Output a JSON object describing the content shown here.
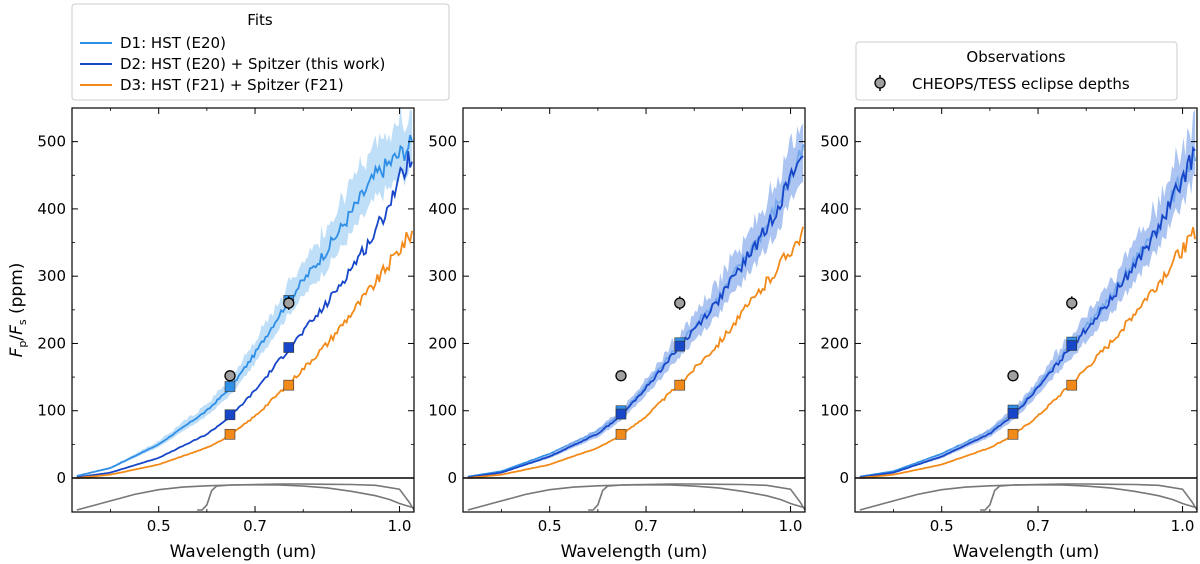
{
  "colors": {
    "d1": "#2f8fe6",
    "d1_band": "#a9d3f6",
    "d2": "#1747c8",
    "d2_band": "#8fb0ee",
    "d3": "#f28a1a",
    "d3_band": "#f8c48c",
    "marker": "#a0a0a0",
    "response": "#777777"
  },
  "legend_fits": {
    "title": "Fits",
    "entries": [
      {
        "label": "D1: HST (E20)",
        "color_key": "d1"
      },
      {
        "label": "D2: HST (E20) + Spitzer (this work)",
        "color_key": "d2"
      },
      {
        "label": "D3: HST (F21) + Spitzer (F21)",
        "color_key": "d3"
      }
    ]
  },
  "legend_obs": {
    "title": "Observations",
    "entries": [
      {
        "label": "CHEOPS/TESS eclipse depths"
      }
    ]
  },
  "ylabel": "F_p/F_s (ppm)",
  "ylabel_parts": {
    "f1": "F",
    "s1": "p",
    "slash": "/",
    "f2": "F",
    "s2": "s",
    "unit": " (ppm)"
  },
  "chart_data": [
    {
      "type": "line",
      "xlabel": "Wavelength (um)",
      "ylabel": "F_p/F_s (ppm)",
      "xlim": [
        0.32,
        1.03
      ],
      "ylim": [
        -50,
        550
      ],
      "xticks": [
        0.5,
        0.7,
        1.0
      ],
      "xtick_labels": [
        "0.5",
        "0.7",
        "1.0"
      ],
      "yticks": [
        0,
        100,
        200,
        300,
        400,
        500
      ],
      "ytick_labels": [
        "0",
        "100",
        "200",
        "300",
        "400",
        "500"
      ],
      "zero_line": 0,
      "series": [
        {
          "name": "D1: HST (E20)",
          "color_key": "d1",
          "band": true,
          "x": [
            0.33,
            0.4,
            0.5,
            0.6,
            0.65,
            0.7,
            0.77,
            0.85,
            0.95,
            1.03
          ],
          "y": [
            3,
            15,
            50,
            100,
            135,
            185,
            265,
            340,
            450,
            500
          ]
        },
        {
          "name": "D2: HST (E20) + Spitzer (this work)",
          "color_key": "d2",
          "band": false,
          "x": [
            0.33,
            0.4,
            0.5,
            0.6,
            0.65,
            0.7,
            0.77,
            0.85,
            0.95,
            1.03
          ],
          "y": [
            1,
            8,
            30,
            65,
            92,
            130,
            192,
            260,
            365,
            490
          ]
        },
        {
          "name": "D3: HST (F21) + Spitzer (F21)",
          "color_key": "d3",
          "band": false,
          "x": [
            0.33,
            0.4,
            0.5,
            0.6,
            0.65,
            0.7,
            0.77,
            0.85,
            0.95,
            1.03
          ],
          "y": [
            0,
            5,
            20,
            45,
            64,
            92,
            140,
            200,
            290,
            370
          ]
        }
      ],
      "points": [
        {
          "x": 0.648,
          "y": 136,
          "color_key": "d1"
        },
        {
          "x": 0.648,
          "y": 94,
          "color_key": "d2"
        },
        {
          "x": 0.648,
          "y": 65,
          "color_key": "d3"
        },
        {
          "x": 0.77,
          "y": 264,
          "color_key": "d1"
        },
        {
          "x": 0.77,
          "y": 194,
          "color_key": "d2"
        },
        {
          "x": 0.77,
          "y": 138,
          "color_key": "d3"
        }
      ],
      "observations": [
        {
          "x": 0.648,
          "y": 152,
          "err": 8
        },
        {
          "x": 0.77,
          "y": 260,
          "err": 10
        }
      ]
    },
    {
      "type": "line",
      "xlabel": "Wavelength (um)",
      "ylabel": "",
      "xlim": [
        0.32,
        1.03
      ],
      "ylim": [
        -50,
        550
      ],
      "xticks": [
        0.5,
        0.7,
        1.0
      ],
      "xtick_labels": [
        "0.5",
        "0.7",
        "1.0"
      ],
      "yticks": [
        0,
        100,
        200,
        300,
        400,
        500
      ],
      "ytick_labels": [
        "0",
        "100",
        "200",
        "300",
        "400",
        "500"
      ],
      "zero_line": 0,
      "series": [
        {
          "name": "D1: HST (E20)",
          "color_key": "d1",
          "band": false,
          "x": [
            0.33,
            0.4,
            0.5,
            0.6,
            0.65,
            0.7,
            0.77,
            0.85,
            0.95,
            1.03
          ],
          "y": [
            2,
            10,
            36,
            70,
            97,
            138,
            200,
            268,
            375,
            490
          ]
        },
        {
          "name": "D2: HST (E20) + Spitzer (this work)",
          "color_key": "d2",
          "band": true,
          "x": [
            0.33,
            0.4,
            0.5,
            0.6,
            0.65,
            0.7,
            0.77,
            0.85,
            0.95,
            1.03
          ],
          "y": [
            1,
            8,
            32,
            66,
            94,
            134,
            196,
            264,
            370,
            490
          ]
        },
        {
          "name": "D3: HST (F21) + Spitzer (F21)",
          "color_key": "d3",
          "band": false,
          "x": [
            0.33,
            0.4,
            0.5,
            0.6,
            0.65,
            0.7,
            0.77,
            0.85,
            0.95,
            1.03
          ],
          "y": [
            0,
            5,
            20,
            45,
            64,
            92,
            140,
            200,
            290,
            370
          ]
        }
      ],
      "points": [
        {
          "x": 0.648,
          "y": 100,
          "color_key": "d1"
        },
        {
          "x": 0.648,
          "y": 95,
          "color_key": "d2"
        },
        {
          "x": 0.648,
          "y": 65,
          "color_key": "d3"
        },
        {
          "x": 0.77,
          "y": 201,
          "color_key": "d1"
        },
        {
          "x": 0.77,
          "y": 196,
          "color_key": "d2"
        },
        {
          "x": 0.77,
          "y": 138,
          "color_key": "d3"
        }
      ],
      "observations": [
        {
          "x": 0.648,
          "y": 152,
          "err": 8
        },
        {
          "x": 0.77,
          "y": 260,
          "err": 10
        }
      ]
    },
    {
      "type": "line",
      "xlabel": "Wavelength (um)",
      "ylabel": "",
      "xlim": [
        0.32,
        1.03
      ],
      "ylim": [
        -50,
        550
      ],
      "xticks": [
        0.5,
        0.7,
        1.0
      ],
      "xtick_labels": [
        "0.5",
        "0.7",
        "1.0"
      ],
      "yticks": [
        0,
        100,
        200,
        300,
        400,
        500
      ],
      "ytick_labels": [
        "0",
        "100",
        "200",
        "300",
        "400",
        "500"
      ],
      "zero_line": 0,
      "series": [
        {
          "name": "D1: HST (E20)",
          "color_key": "d1",
          "band": false,
          "x": [
            0.33,
            0.4,
            0.5,
            0.6,
            0.65,
            0.7,
            0.77,
            0.85,
            0.95,
            1.03
          ],
          "y": [
            2,
            10,
            36,
            70,
            98,
            138,
            200,
            268,
            375,
            490
          ]
        },
        {
          "name": "D2: HST (E20) + Spitzer (this work)",
          "color_key": "d2",
          "band": true,
          "x": [
            0.33,
            0.4,
            0.5,
            0.6,
            0.65,
            0.7,
            0.77,
            0.85,
            0.95,
            1.03
          ],
          "y": [
            1,
            8,
            32,
            66,
            94,
            134,
            196,
            264,
            370,
            490
          ]
        },
        {
          "name": "D3: HST (F21) + Spitzer (F21)",
          "color_key": "d3",
          "band": false,
          "x": [
            0.33,
            0.4,
            0.5,
            0.6,
            0.65,
            0.7,
            0.77,
            0.85,
            0.95,
            1.03
          ],
          "y": [
            0,
            5,
            20,
            45,
            64,
            92,
            140,
            200,
            290,
            370
          ]
        }
      ],
      "points": [
        {
          "x": 0.648,
          "y": 101,
          "color_key": "d1"
        },
        {
          "x": 0.648,
          "y": 96,
          "color_key": "d2"
        },
        {
          "x": 0.648,
          "y": 65,
          "color_key": "d3"
        },
        {
          "x": 0.77,
          "y": 202,
          "color_key": "d1"
        },
        {
          "x": 0.77,
          "y": 197,
          "color_key": "d2"
        },
        {
          "x": 0.77,
          "y": 138,
          "color_key": "d3"
        }
      ],
      "observations": [
        {
          "x": 0.648,
          "y": 152,
          "err": 8
        },
        {
          "x": 0.77,
          "y": 260,
          "err": 10
        }
      ]
    }
  ],
  "response_curves": {
    "x": [
      0.33,
      0.35,
      0.4,
      0.45,
      0.5,
      0.55,
      0.6,
      0.65,
      0.7,
      0.75,
      0.8,
      0.85,
      0.9,
      0.95,
      0.98,
      1.0,
      1.03
    ],
    "cheops": [
      0.0,
      0.1,
      0.35,
      0.6,
      0.78,
      0.88,
      0.93,
      0.96,
      0.97,
      0.96,
      0.92,
      0.85,
      0.72,
      0.55,
      0.4,
      0.25,
      0.08
    ],
    "tess_x": [
      0.58,
      0.59,
      0.6,
      0.61,
      0.62,
      0.65,
      0.7,
      0.75,
      0.8,
      0.85,
      0.9,
      0.95,
      1.0,
      1.02,
      1.03
    ],
    "tess": [
      0.0,
      0.0,
      0.2,
      0.75,
      0.92,
      0.96,
      0.98,
      1.0,
      1.0,
      0.99,
      0.98,
      0.95,
      0.8,
      0.3,
      0.0
    ]
  }
}
